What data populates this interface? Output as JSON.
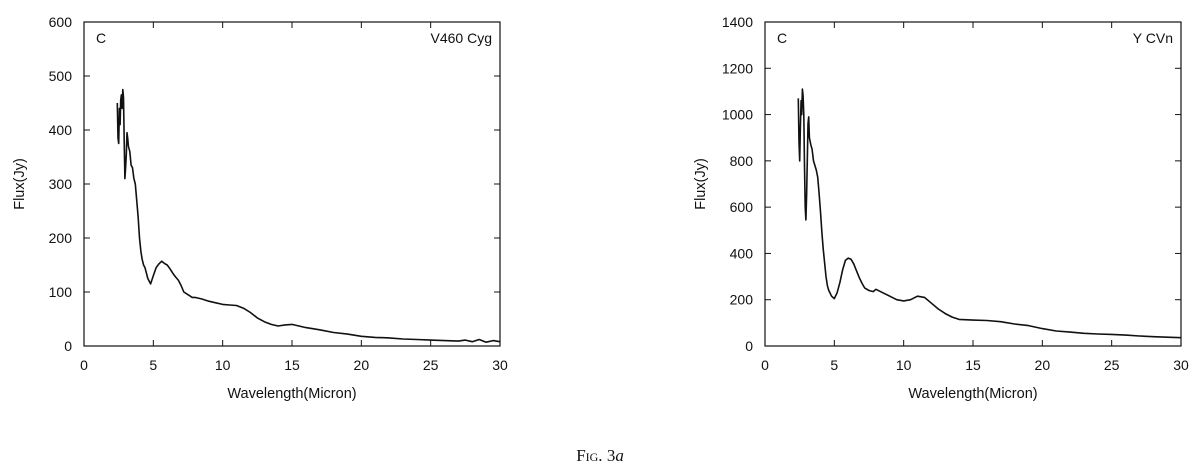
{
  "caption": {
    "prefix": "Fig.",
    "number": "3",
    "suffix": "a"
  },
  "chart_data": [
    {
      "type": "line",
      "title": "",
      "label_left": "C",
      "label_right": "V460 Cyg",
      "xlabel": "Wavelength(Micron)",
      "ylabel": "Flux(Jy)",
      "xlim": [
        0,
        30
      ],
      "ylim": [
        0,
        600
      ],
      "xticks": [
        0,
        5,
        10,
        15,
        20,
        25,
        30
      ],
      "yticks": [
        0,
        100,
        200,
        300,
        400,
        500,
        600
      ],
      "grid": false,
      "series": [
        {
          "x": [
            2.4,
            2.45,
            2.5,
            2.55,
            2.6,
            2.65,
            2.7,
            2.75,
            2.8,
            2.85,
            2.9,
            2.95,
            3.0,
            3.05,
            3.1,
            3.15,
            3.2,
            3.3,
            3.4,
            3.5,
            3.6,
            3.7,
            3.8,
            3.9,
            4.0,
            4.1,
            4.2,
            4.3,
            4.4,
            4.5,
            4.6,
            4.8,
            5.0,
            5.2,
            5.4,
            5.6,
            5.8,
            6.0,
            6.2,
            6.4,
            6.6,
            6.8,
            7.0,
            7.2,
            7.5,
            7.8,
            8.0,
            8.5,
            9.0,
            9.5,
            10.0,
            10.5,
            11.0,
            11.5,
            12.0,
            12.5,
            13.0,
            13.5,
            14.0,
            14.5,
            15.0,
            16.0,
            17.0,
            18.0,
            19.0,
            20.0,
            21.0,
            22.0,
            23.0,
            24.0,
            25.0,
            26.0,
            27.0,
            27.5,
            28.0,
            28.5,
            29.0,
            29.5,
            30.0
          ],
          "y": [
            450,
            385,
            375,
            440,
            410,
            455,
            465,
            440,
            475,
            460,
            380,
            310,
            330,
            355,
            395,
            385,
            370,
            360,
            335,
            330,
            310,
            300,
            270,
            240,
            200,
            175,
            160,
            150,
            145,
            135,
            125,
            115,
            130,
            145,
            152,
            157,
            153,
            150,
            143,
            135,
            128,
            122,
            112,
            100,
            95,
            90,
            90,
            87,
            83,
            80,
            77,
            76,
            75,
            70,
            62,
            52,
            45,
            40,
            37,
            39,
            40,
            34,
            30,
            25,
            22,
            18,
            16,
            15,
            13,
            12,
            11,
            10,
            9,
            11,
            8,
            12,
            7,
            10,
            8
          ]
        }
      ]
    },
    {
      "type": "line",
      "title": "",
      "label_left": "C",
      "label_right": "Y CVn",
      "xlabel": "Wavelength(Micron)",
      "ylabel": "Flux(Jy)",
      "xlim": [
        0,
        30
      ],
      "ylim": [
        0,
        1400
      ],
      "xticks": [
        0,
        5,
        10,
        15,
        20,
        25,
        30
      ],
      "yticks": [
        0,
        200,
        400,
        600,
        800,
        1000,
        1200,
        1400
      ],
      "grid": false,
      "series": [
        {
          "x": [
            2.4,
            2.45,
            2.5,
            2.55,
            2.6,
            2.65,
            2.7,
            2.75,
            2.8,
            2.85,
            2.9,
            2.95,
            3.0,
            3.05,
            3.1,
            3.15,
            3.2,
            3.3,
            3.4,
            3.5,
            3.6,
            3.7,
            3.8,
            3.9,
            4.0,
            4.1,
            4.2,
            4.3,
            4.4,
            4.5,
            4.6,
            4.8,
            5.0,
            5.2,
            5.4,
            5.6,
            5.8,
            6.0,
            6.2,
            6.4,
            6.6,
            6.8,
            7.0,
            7.2,
            7.5,
            7.8,
            8.0,
            8.5,
            9.0,
            9.5,
            10.0,
            10.5,
            11.0,
            11.5,
            12.0,
            12.5,
            13.0,
            13.5,
            14.0,
            15.0,
            16.0,
            17.0,
            18.0,
            19.0,
            20.0,
            21.0,
            22.0,
            23.0,
            24.0,
            25.0,
            26.0,
            27.0,
            28.0,
            29.0,
            30.0
          ],
          "y": [
            1070,
            880,
            800,
            950,
            1060,
            1000,
            1110,
            1080,
            1000,
            780,
            600,
            545,
            650,
            800,
            960,
            990,
            900,
            870,
            850,
            800,
            780,
            760,
            730,
            660,
            580,
            490,
            420,
            360,
            300,
            260,
            240,
            215,
            205,
            230,
            275,
            330,
            370,
            380,
            375,
            355,
            325,
            295,
            270,
            250,
            240,
            235,
            245,
            230,
            215,
            200,
            195,
            200,
            215,
            210,
            185,
            160,
            140,
            125,
            115,
            112,
            110,
            105,
            95,
            88,
            75,
            65,
            60,
            55,
            52,
            50,
            47,
            43,
            40,
            38,
            36
          ]
        }
      ]
    }
  ]
}
